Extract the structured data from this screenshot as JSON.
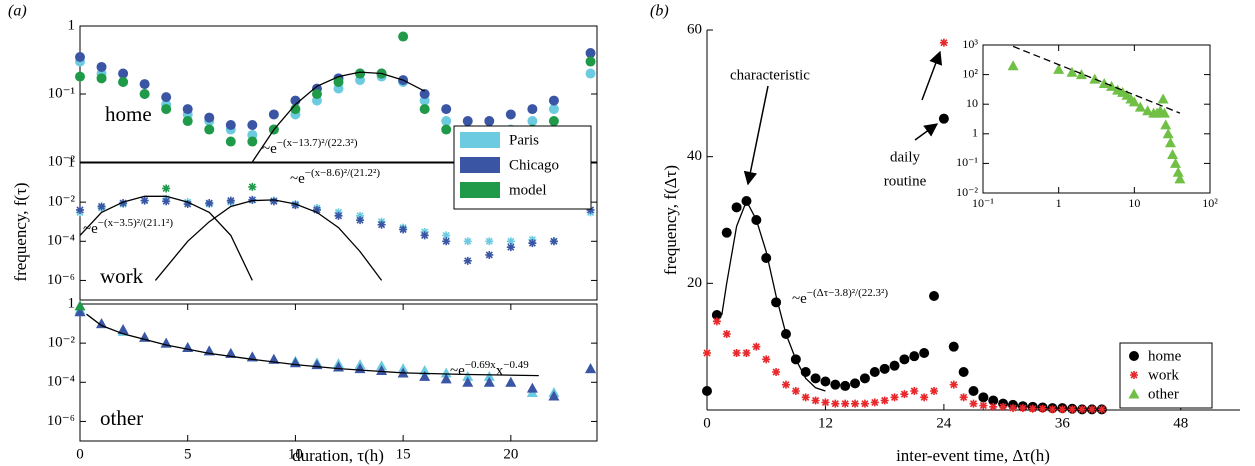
{
  "chart_data": [
    {
      "type": "scatter",
      "panel_label": "(a)",
      "subplot_label": "home",
      "marker": "circle",
      "xlim": [
        0,
        24
      ],
      "ylim": [
        0.01,
        1
      ],
      "ylog": true,
      "yticks": [
        {
          "value": 0.01,
          "label": "10⁻²"
        },
        {
          "value": 0.1,
          "label": "10⁻¹"
        },
        1
      ],
      "legend": "lower right",
      "x": [
        0,
        1,
        2,
        3,
        4,
        5,
        6,
        7,
        8,
        9,
        10,
        11,
        12,
        13,
        14,
        15,
        16,
        17,
        18,
        19,
        20,
        21,
        22,
        23.7
      ],
      "series": [
        {
          "name": "Paris",
          "color": "#6ccbe0",
          "values": [
            0.3,
            0.2,
            0.15,
            0.1,
            0.07,
            0.05,
            0.04,
            0.03,
            0.025,
            0.03,
            0.05,
            0.08,
            0.12,
            0.16,
            0.18,
            0.15,
            0.08,
            0.04,
            0.03,
            0.025,
            0.03,
            0.04,
            0.06,
            0.2
          ]
        },
        {
          "name": "Chicago",
          "color": "#3a55a4",
          "values": [
            0.35,
            0.25,
            0.2,
            0.14,
            0.09,
            0.06,
            0.045,
            0.035,
            0.035,
            0.05,
            0.08,
            0.12,
            0.17,
            0.2,
            0.2,
            0.16,
            0.1,
            0.06,
            0.04,
            0.04,
            0.05,
            0.06,
            0.08,
            0.4
          ]
        },
        {
          "name": "model",
          "color": "#1e9a48",
          "values": [
            0.18,
            0.17,
            0.15,
            0.1,
            0.06,
            0.04,
            0.03,
            0.02,
            0.02,
            0.03,
            0.06,
            0.1,
            0.15,
            0.2,
            0.2,
            0.7,
            0.06,
            0.03,
            0.025,
            0.025,
            0.025,
            0.03,
            0.04,
            0.3
          ]
        }
      ],
      "fits": [
        {
          "x": [
            8,
            9,
            10,
            11,
            12,
            13,
            14,
            15,
            16
          ],
          "values": [
            0.01,
            0.03,
            0.07,
            0.13,
            0.18,
            0.21,
            0.2,
            0.16,
            0.11
          ],
          "label": [
            "~e",
            "−(x−13.7)²/(22.3²)"
          ]
        }
      ]
    },
    {
      "type": "scatter",
      "subplot_label": "work",
      "marker": "star",
      "y_label": "frequency, f(τ)",
      "xlim": [
        0,
        24
      ],
      "ylim": [
        1e-07,
        1
      ],
      "ylog": true,
      "yticks": [
        {
          "value": 1e-06,
          "label": "10⁻⁶"
        },
        {
          "value": 0.0001,
          "label": "10⁻⁴"
        },
        {
          "value": 0.01,
          "label": "10⁻²"
        },
        1
      ],
      "x": [
        0,
        1,
        2,
        3,
        4,
        5,
        6,
        7,
        8,
        9,
        10,
        11,
        12,
        13,
        14,
        15,
        16,
        17,
        18,
        19,
        20,
        21,
        22,
        23.7
      ],
      "series": [
        {
          "color": "#6ccbe0",
          "values": [
            0.003,
            0.005,
            0.008,
            0.012,
            0.015,
            0.01,
            0.008,
            0.01,
            0.013,
            0.012,
            0.008,
            0.005,
            0.003,
            0.002,
            0.001,
            0.0005,
            0.0003,
            0.0002,
            0.0001,
            0.0001,
            0.0001,
            0.00012,
            0.0001,
            0.003
          ]
        },
        {
          "color": "#3a55a4",
          "values": [
            0.004,
            0.006,
            0.009,
            0.012,
            0.011,
            0.008,
            0.009,
            0.012,
            0.013,
            0.011,
            0.007,
            0.004,
            0.002,
            0.0012,
            0.0007,
            0.0004,
            0.0002,
            0.0001,
            1e-05,
            2e-05,
            5e-05,
            8e-05,
            0.0001,
            0.004
          ]
        },
        {
          "color": "#1e9a48",
          "values": [
            null,
            null,
            null,
            null,
            0.05,
            null,
            null,
            null,
            0.06,
            null,
            null,
            null,
            null,
            null,
            null,
            null,
            null,
            null,
            null,
            null,
            null,
            null,
            null,
            null
          ]
        }
      ],
      "fits": [
        {
          "x": [
            3.5,
            5,
            6,
            7,
            8,
            9,
            10,
            11,
            12,
            13,
            14
          ],
          "values": [
            1e-06,
            0.0001,
            0.001,
            0.006,
            0.012,
            0.013,
            0.008,
            0.003,
            0.0005,
            3e-05,
            1e-06
          ],
          "label": [
            "~e",
            "−(x−8.6)²/(21.2²)"
          ]
        },
        {
          "x": [
            0,
            1,
            2,
            3,
            3.5,
            4,
            5,
            6,
            7,
            8
          ],
          "values": [
            0.0002,
            0.003,
            0.01,
            0.02,
            0.02,
            0.02,
            0.01,
            0.003,
            0.0002,
            1e-06
          ],
          "label": [
            "~e",
            "−(x−3.5)²/(21.1²)"
          ]
        }
      ]
    },
    {
      "type": "scatter",
      "subplot_label": "other",
      "marker": "triangle",
      "x_label": "duration, τ(h)",
      "xlim": [
        0,
        24
      ],
      "ylim": [
        1e-07,
        1
      ],
      "ylog": true,
      "xticks": [
        0,
        5,
        10,
        15,
        20
      ],
      "yticks": [
        {
          "value": 1e-06,
          "label": "10⁻⁶"
        },
        {
          "value": 0.0001,
          "label": "10⁻⁴"
        },
        {
          "value": 0.01,
          "label": "10⁻²"
        },
        1
      ],
      "x": [
        0,
        1,
        2,
        3,
        4,
        5,
        6,
        7,
        8,
        9,
        10,
        11,
        12,
        13,
        14,
        15,
        16,
        17,
        18,
        19,
        20,
        21,
        22,
        23.7
      ],
      "series": [
        {
          "color": "#6ccbe0",
          "values": [
            0.5,
            0.1,
            0.04,
            0.02,
            0.01,
            0.006,
            0.004,
            0.003,
            0.002,
            0.0015,
            0.0012,
            0.001,
            0.0009,
            0.0008,
            0.0007,
            0.0005,
            0.0004,
            0.0003,
            0.0002,
            0.0002,
            0.0001,
            3e-05,
            3e-05,
            0.0005
          ]
        },
        {
          "color": "#3a55a4",
          "values": [
            0.4,
            0.1,
            0.05,
            0.02,
            0.01,
            0.006,
            0.004,
            0.003,
            0.002,
            0.0015,
            0.001,
            0.0008,
            0.0006,
            0.0005,
            0.0004,
            0.0003,
            0.0002,
            0.00015,
            0.0001,
            0.0001,
            0.0001,
            5e-05,
            2e-05,
            0.0005
          ]
        },
        {
          "color": "#1e9a48",
          "values": [
            0.8,
            null,
            null,
            null,
            null,
            null,
            null,
            null,
            null,
            null,
            null,
            null,
            null,
            null,
            null,
            null,
            null,
            null,
            null,
            null,
            null,
            null,
            null,
            null
          ]
        }
      ],
      "fits": [
        {
          "x": [
            0.3,
            1,
            2,
            4,
            6,
            8,
            10,
            12,
            15,
            18,
            21.3
          ],
          "values": [
            0.3,
            0.08,
            0.03,
            0.008,
            0.003,
            0.0015,
            0.0008,
            0.0005,
            0.0003,
            0.00025,
            0.00022
          ],
          "label": [
            "~e",
            "−0.69x",
            "x",
            "−0.49"
          ]
        }
      ]
    },
    {
      "type": "scatter",
      "panel_label": "(b)",
      "x_label": "inter-event time, Δτ(h)",
      "y_label": "frequency, f(Δτ)",
      "xlim": [
        0,
        54
      ],
      "ylim": [
        0,
        60
      ],
      "xticks": [
        0,
        12,
        24,
        36,
        48
      ],
      "yticks": [
        20,
        40,
        60
      ],
      "legend": "lower right",
      "x": [
        0,
        1,
        2,
        3,
        4,
        5,
        6,
        7,
        8,
        9,
        10,
        11,
        12,
        13,
        14,
        15,
        16,
        17,
        18,
        19,
        20,
        21,
        22,
        23,
        24,
        25,
        26,
        27,
        28,
        29,
        30,
        31,
        32,
        33,
        34,
        35,
        36,
        37,
        38,
        39,
        40
      ],
      "series": [
        {
          "name": "home",
          "color": "#000000",
          "marker": "circle",
          "values": [
            3,
            15,
            28,
            32,
            33,
            30,
            24,
            17,
            12,
            8,
            6,
            5,
            4.5,
            4,
            3.8,
            4.2,
            5,
            6,
            6.5,
            7,
            8,
            8.5,
            9,
            18,
            46,
            10,
            6,
            3,
            2,
            1.5,
            1,
            0.8,
            0.6,
            0.5,
            0.4,
            0.3,
            0.3,
            0.2,
            0.1,
            0.1,
            0.1
          ]
        },
        {
          "name": "work",
          "color": "#e8282b",
          "marker": "star",
          "values": [
            9,
            14,
            12,
            9,
            9,
            10,
            8,
            6,
            4,
            3,
            2,
            1.5,
            1.2,
            1,
            1,
            1,
            1,
            1.2,
            1.5,
            2,
            2.5,
            3,
            2,
            3,
            58,
            4,
            2,
            1,
            0.7,
            0.5,
            0.5,
            0.3,
            0.3,
            0.2,
            0.2,
            0.1,
            0.1,
            0.1,
            0.1,
            0.1,
            0.1
          ]
        }
      ],
      "fits": [
        {
          "x": [
            1.5,
            2,
            3,
            4,
            5,
            6,
            7,
            8,
            9,
            10,
            11,
            12
          ],
          "values": [
            15,
            20,
            29,
            33,
            30,
            25,
            18,
            12,
            8,
            5,
            3.5,
            3
          ],
          "label": [
            "~e",
            "−(Δτ−3.8)²/(22.3²)"
          ]
        }
      ],
      "annotations": [
        {
          "text": "characteristic"
        },
        {
          "text": "daily"
        },
        {
          "text": "routine"
        }
      ]
    },
    {
      "type": "scatter",
      "marker": "triangle",
      "xlim": [
        0.1,
        100
      ],
      "ylim": [
        0.01,
        1000
      ],
      "xlog": true,
      "ylog": true,
      "xticks": [
        {
          "value": 0.1,
          "label": "10⁻¹"
        },
        1,
        10,
        {
          "value": 100,
          "label": "10²"
        }
      ],
      "yticks": [
        {
          "value": 0.01,
          "label": "10⁻²"
        },
        {
          "value": 0.1,
          "label": "10⁻¹"
        },
        1,
        10,
        {
          "value": 100,
          "label": "10²"
        },
        {
          "value": 1000,
          "label": "10³"
        }
      ],
      "x": [
        0.25,
        1,
        1.5,
        2,
        3,
        4,
        5,
        6,
        7,
        8,
        9,
        10,
        12,
        15,
        18,
        20,
        22,
        24,
        25,
        26,
        28,
        30,
        32,
        35,
        38,
        40
      ],
      "series": [
        {
          "name": "other",
          "color": "#71c046",
          "values": [
            200,
            150,
            120,
            100,
            70,
            50,
            40,
            30,
            25,
            20,
            15,
            12,
            8,
            6,
            5,
            5,
            6,
            15,
            5,
            2,
            1,
            0.5,
            0.2,
            0.1,
            0.05,
            0.03
          ]
        }
      ],
      "fits": [
        {
          "x": [
            0.25,
            40
          ],
          "values": [
            900,
            5
          ],
          "dashed": true
        }
      ]
    }
  ]
}
